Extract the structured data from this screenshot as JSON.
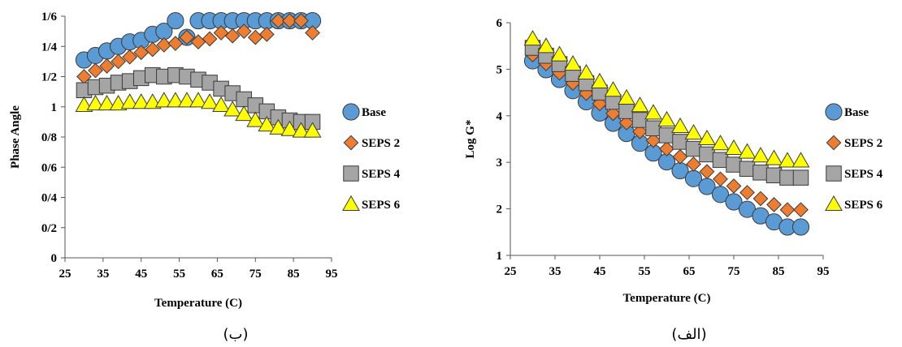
{
  "chart_data": [
    {
      "type": "scatter",
      "caption": "(ب)",
      "xlabel": "Temperature (C)",
      "ylabel": "Phase Angle",
      "xlim": [
        25,
        95
      ],
      "ylim": [
        0,
        1.6
      ],
      "xticks": [
        25,
        35,
        45,
        55,
        65,
        75,
        85,
        95
      ],
      "xtick_labels": [
        "25",
        "35",
        "45",
        "55",
        "65",
        "75",
        "85",
        "95"
      ],
      "yticks": [
        0,
        0.2,
        0.4,
        0.6,
        0.8,
        1.0,
        1.2,
        1.4,
        1.6
      ],
      "ytick_labels": [
        "0",
        "0/2",
        "0/4",
        "0/6",
        "0/8",
        "1",
        "1/2",
        "1/4",
        "1/6"
      ],
      "grid": false,
      "legend": "right",
      "x": [
        30,
        33,
        36,
        39,
        42,
        45,
        48,
        51,
        54,
        57,
        60,
        63,
        66,
        69,
        72,
        75,
        78,
        81,
        84,
        87,
        90
      ],
      "series": [
        {
          "name": "Base",
          "marker": "circle",
          "color": "#5b9bd5",
          "values": [
            1.31,
            1.34,
            1.37,
            1.4,
            1.43,
            1.44,
            1.48,
            1.5,
            1.57,
            1.46,
            1.57,
            1.57,
            1.57,
            1.57,
            1.57,
            1.57,
            1.57,
            1.57,
            1.57,
            1.57,
            1.57
          ]
        },
        {
          "name": "SEPS 2",
          "marker": "diamond",
          "color": "#ed7d31",
          "values": [
            1.2,
            1.24,
            1.27,
            1.3,
            1.33,
            1.36,
            1.38,
            1.41,
            1.42,
            1.46,
            1.43,
            1.45,
            1.49,
            1.47,
            1.5,
            1.46,
            1.48,
            1.57,
            1.57,
            1.57,
            1.49
          ]
        },
        {
          "name": "SEPS 4",
          "marker": "square",
          "color": "#a5a5a5",
          "values": [
            1.11,
            1.13,
            1.14,
            1.16,
            1.17,
            1.19,
            1.21,
            1.2,
            1.21,
            1.2,
            1.18,
            1.16,
            1.12,
            1.09,
            1.05,
            1.01,
            0.97,
            0.93,
            0.91,
            0.9,
            0.9
          ]
        },
        {
          "name": "SEPS 6",
          "marker": "triangle",
          "color": "#ffff00",
          "values": [
            1.01,
            1.02,
            1.02,
            1.02,
            1.03,
            1.03,
            1.03,
            1.04,
            1.04,
            1.04,
            1.04,
            1.03,
            1.01,
            0.98,
            0.95,
            0.91,
            0.88,
            0.86,
            0.85,
            0.84,
            0.84
          ]
        }
      ]
    },
    {
      "type": "scatter",
      "caption": "(الف)",
      "xlabel": "Temperature (C)",
      "ylabel": "Log G*",
      "xlim": [
        25,
        95
      ],
      "ylim": [
        1,
        6
      ],
      "xticks": [
        25,
        35,
        45,
        55,
        65,
        75,
        85,
        95
      ],
      "xtick_labels": [
        "25",
        "35",
        "45",
        "55",
        "65",
        "75",
        "85",
        "95"
      ],
      "yticks": [
        1,
        2,
        3,
        4,
        5,
        6
      ],
      "ytick_labels": [
        "1",
        "2",
        "3",
        "4",
        "5",
        "6"
      ],
      "grid": false,
      "legend": "right",
      "x": [
        30,
        33,
        36,
        39,
        42,
        45,
        48,
        51,
        54,
        57,
        60,
        63,
        66,
        69,
        72,
        75,
        78,
        81,
        84,
        87,
        90
      ],
      "series": [
        {
          "name": "Base",
          "marker": "circle",
          "color": "#5b9bd5",
          "values": [
            5.18,
            4.99,
            4.78,
            4.54,
            4.3,
            4.06,
            3.84,
            3.62,
            3.41,
            3.2,
            3.01,
            2.82,
            2.65,
            2.48,
            2.31,
            2.15,
            1.99,
            1.85,
            1.72,
            1.61,
            1.61
          ]
        },
        {
          "name": "SEPS 2",
          "marker": "diamond",
          "color": "#ed7d31",
          "values": [
            5.31,
            5.12,
            4.92,
            4.7,
            4.48,
            4.26,
            4.05,
            3.85,
            3.66,
            3.47,
            3.29,
            3.12,
            2.96,
            2.8,
            2.64,
            2.49,
            2.35,
            2.22,
            2.09,
            1.98,
            1.98
          ]
        },
        {
          "name": "SEPS 4",
          "marker": "square",
          "color": "#a5a5a5",
          "values": [
            5.46,
            5.29,
            5.11,
            4.9,
            4.7,
            4.5,
            4.3,
            4.1,
            3.91,
            3.73,
            3.58,
            3.44,
            3.29,
            3.17,
            3.05,
            2.95,
            2.86,
            2.78,
            2.72,
            2.67,
            2.67
          ]
        },
        {
          "name": "SEPS 6",
          "marker": "triangle",
          "color": "#ffff00",
          "values": [
            5.65,
            5.49,
            5.31,
            5.11,
            4.92,
            4.73,
            4.55,
            4.38,
            4.22,
            4.06,
            3.91,
            3.77,
            3.63,
            3.51,
            3.4,
            3.3,
            3.22,
            3.14,
            3.08,
            3.03,
            3.03
          ]
        }
      ]
    }
  ]
}
